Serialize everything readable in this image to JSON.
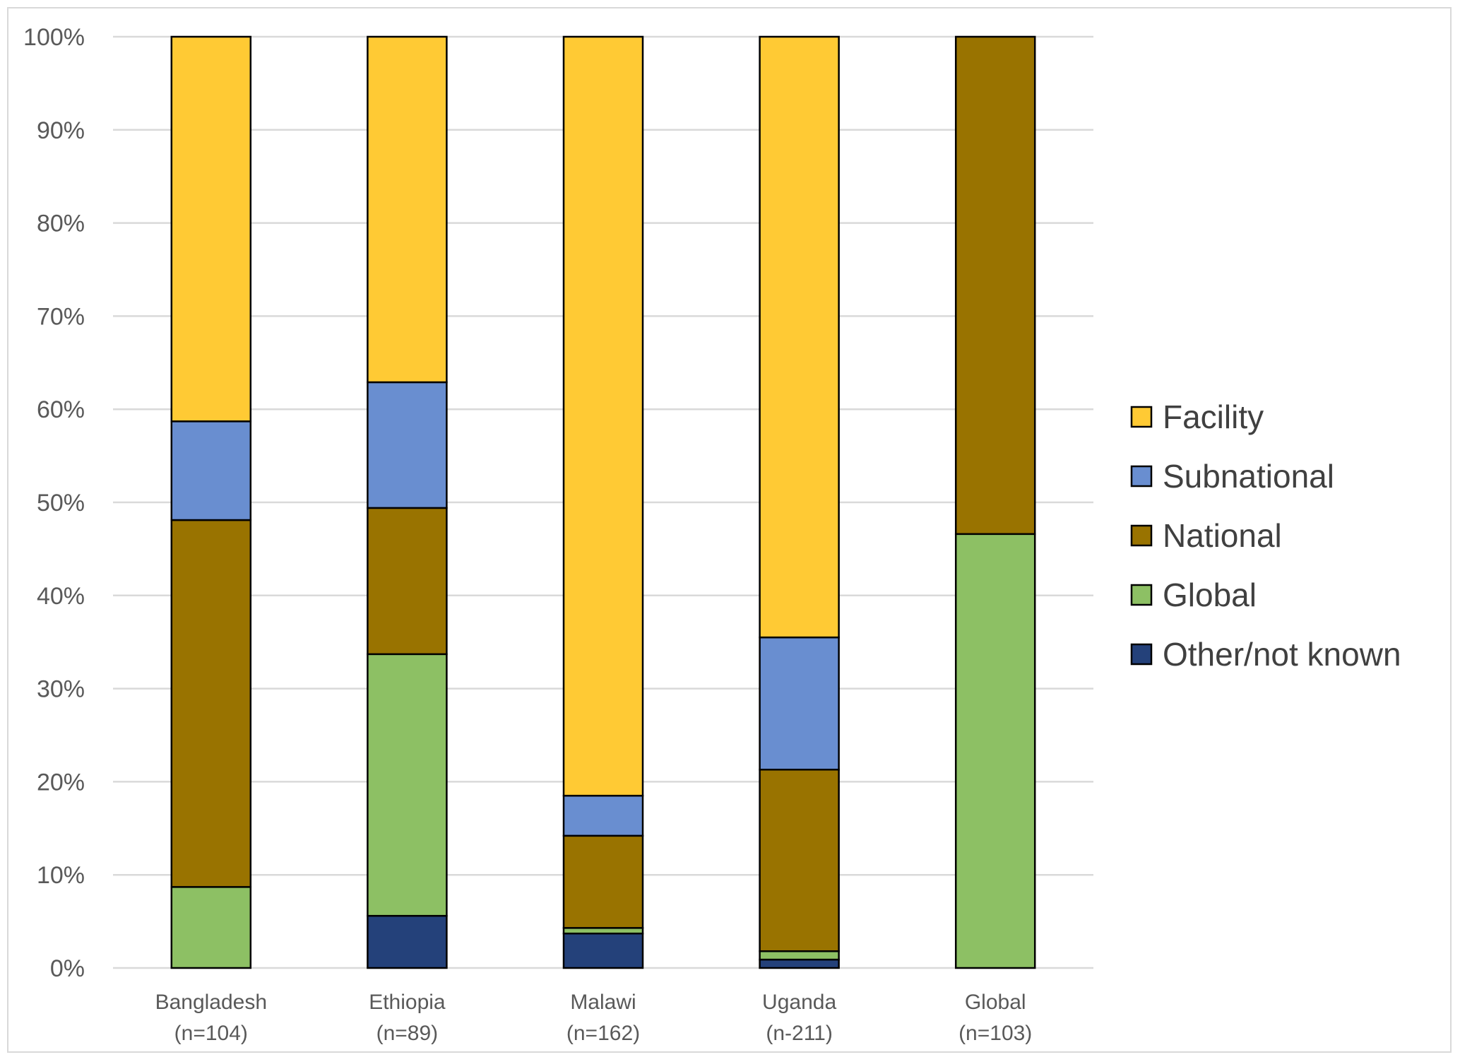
{
  "chart_data": {
    "type": "bar",
    "stacked": true,
    "percent": true,
    "title": "",
    "xlabel": "",
    "ylabel": "",
    "ylim": [
      0,
      100
    ],
    "y_ticks": [
      "0%",
      "10%",
      "20%",
      "30%",
      "40%",
      "50%",
      "60%",
      "70%",
      "80%",
      "90%",
      "100%"
    ],
    "categories": [
      {
        "line1": "Bangladesh",
        "line2": "(n=104)"
      },
      {
        "line1": "Ethiopia",
        "line2": "(n=89)"
      },
      {
        "line1": "Malawi",
        "line2": "(n=162)"
      },
      {
        "line1": "Uganda",
        "line2": "(n-211)"
      },
      {
        "line1": "Global",
        "line2": "(n=103)"
      }
    ],
    "series": [
      {
        "name": "Other/not known",
        "color": "#24417a",
        "values": [
          0,
          5.6,
          3.7,
          0.9,
          0
        ]
      },
      {
        "name": "Global",
        "color": "#8dc064",
        "values": [
          8.7,
          28.1,
          0.6,
          0.9,
          46.6
        ]
      },
      {
        "name": "National",
        "color": "#997300",
        "values": [
          39.4,
          15.7,
          9.9,
          19.5,
          53.4
        ]
      },
      {
        "name": "Subnational",
        "color": "#698ed0",
        "values": [
          10.6,
          13.5,
          4.3,
          14.2,
          0
        ]
      },
      {
        "name": "Facility",
        "color": "#ffca34",
        "values": [
          41.3,
          37.1,
          81.5,
          64.5,
          0
        ]
      }
    ],
    "legend": {
      "position": "right",
      "order": [
        "Facility",
        "Subnational",
        "National",
        "Global",
        "Other/not known"
      ]
    },
    "grid": true
  }
}
